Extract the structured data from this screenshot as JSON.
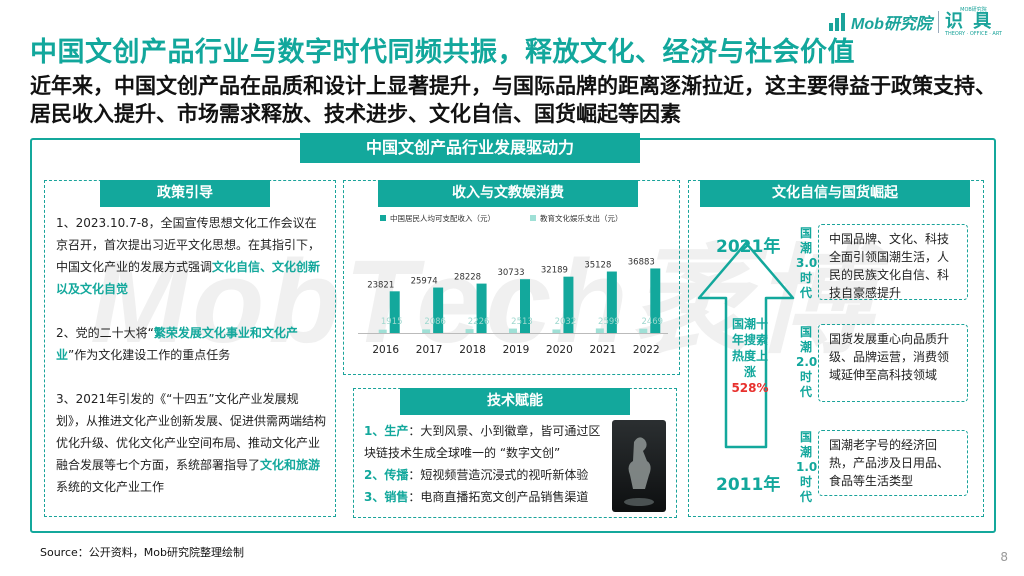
{
  "logo": {
    "brand": "Mob研究院",
    "brand2": "识 具",
    "tag_top": "MOB研究院",
    "tag_bottom": "THEORY · OFFICE · ART"
  },
  "title": "中国文创产品行业与数字时代同频共振，释放文化、经济与社会价值",
  "subtitle": "近年来，中国文创产品在品质和设计上显著提升，与国际品牌的距离逐渐拉近，这主要得益于政策支持、居民收入提升、市场需求释放、技术进步、文化自信、国货崛起等因素",
  "frame_title": "中国文创产品行业发展驱动力",
  "watermark": "MobTech袤博",
  "policy": {
    "heading": "政策引导",
    "p1_a": "1、2023.10.7-8，全国宣传思想文化工作会议在京召开，首次提出习近平文化思想。在其指引下，中国文化产业的发展方式强调",
    "p1_hl": "文化自信、文化创新以及文化自觉",
    "p2_a": "2、党的二十大将“",
    "p2_hl": "繁荣发展文化事业和文化产业",
    "p2_b": "”作为文化建设工作的重点任务",
    "p3_a": "3、2021年引发的《“十四五”文化产业发展规划》，从推进文化产业创新发展、促进供需两端结构优化升级、优化文化产业空间布局、推动文化产业融合发展等七个方面，系统部署指导了",
    "p3_hl": "文化和旅游",
    "p3_b": "系统的文化产业工作"
  },
  "income": {
    "heading": "收入与文教娱消费"
  },
  "chart_data": {
    "type": "bar",
    "categories": [
      "2016",
      "2017",
      "2018",
      "2019",
      "2020",
      "2021",
      "2022"
    ],
    "series": [
      {
        "name": "中国居民人均可支配收入（元）",
        "values": [
          23821,
          25974,
          28228,
          30733,
          32189,
          35128,
          36883
        ],
        "color": "#13a89c"
      },
      {
        "name": "教育文化娱乐支出（元）",
        "values": [
          1915,
          2086,
          2226,
          2513,
          2032,
          2599,
          2469
        ],
        "color": "#9fe0d6"
      }
    ],
    "ylim": [
      0,
      40000
    ],
    "legend": "top"
  },
  "tech": {
    "heading": "技术赋能",
    "l1_k": "1、生产",
    "l1": "：大到风景、小到徽章，皆可通过区块链技术生成全球唯一的 “数字文创”",
    "l2_k": "2、传播",
    "l2": "：短视频营造沉浸式的视听新体验",
    "l3_k": "3、销售",
    "l3": "：电商直播拓宽文创产品销售渠道"
  },
  "culture": {
    "heading": "文化自信与国货崛起",
    "year_top": "2021年",
    "year_bottom": "2011年",
    "arrow_label": "国潮十年搜索热度上涨",
    "arrow_pct": "528%",
    "gens": [
      {
        "label": "国潮3.0时代",
        "text": "中国品牌、文化、科技全面引领国潮生活，人民的民族文化自信、科技自豪感提升"
      },
      {
        "label": "国潮2.0时代",
        "text": "国货发展重心向品质升级、品牌运营，消费领域延伸至高科技领域"
      },
      {
        "label": "国潮1.0时代",
        "text": "国潮老字号的经济回热，产品涉及日用品、食品等生活类型"
      }
    ]
  },
  "source": "Source：公开资料，Mob研究院整理绘制",
  "page_number": "8"
}
